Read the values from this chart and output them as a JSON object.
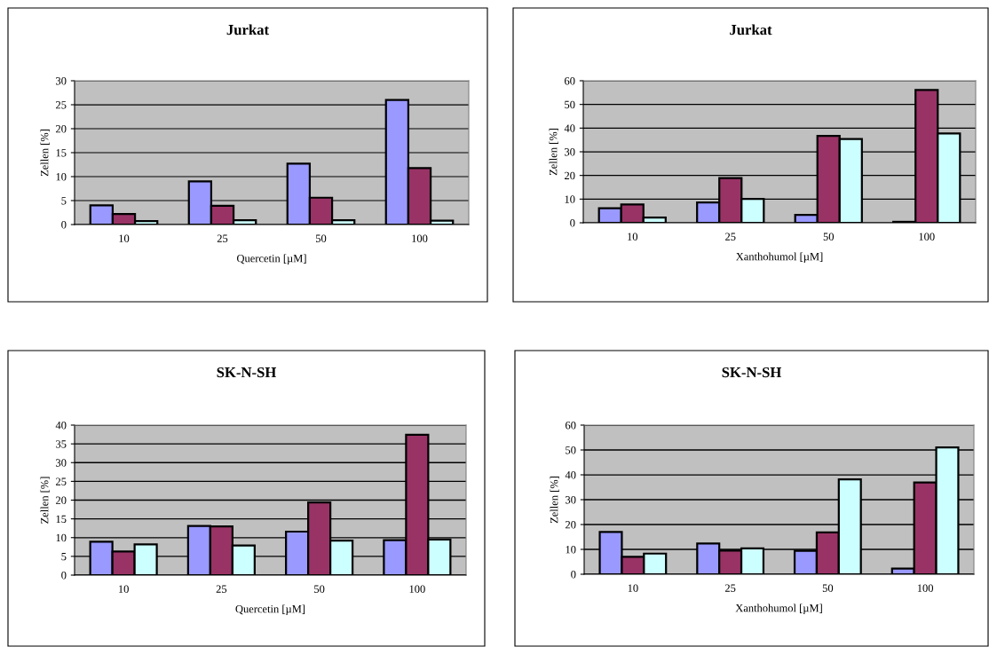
{
  "chart_data": [
    {
      "type": "bar",
      "title": "Jurkat",
      "xlabel": "Quercetin [µM]",
      "ylabel": "Zellen [%]",
      "categories": [
        "10",
        "25",
        "50",
        "100"
      ],
      "ylim": [
        0,
        30
      ],
      "yticks": [
        0,
        5,
        10,
        15,
        20,
        25,
        30
      ],
      "grid": "y",
      "series": [
        {
          "color": "#9999ff",
          "values": [
            4.0,
            9.0,
            12.7,
            26.0
          ]
        },
        {
          "color": "#993366",
          "values": [
            2.2,
            3.9,
            5.6,
            11.8
          ]
        },
        {
          "color": "#ccffff",
          "values": [
            0.7,
            0.9,
            0.9,
            0.8
          ]
        }
      ]
    },
    {
      "type": "bar",
      "title": "Jurkat",
      "xlabel": "Xanthohumol [µM]",
      "ylabel": "Zellen [%]",
      "categories": [
        "10",
        "25",
        "50",
        "100"
      ],
      "ylim": [
        0,
        60
      ],
      "yticks": [
        0,
        10,
        20,
        30,
        40,
        50,
        60
      ],
      "grid": "y",
      "series": [
        {
          "color": "#9999ff",
          "values": [
            6.1,
            8.6,
            3.3,
            0.4
          ]
        },
        {
          "color": "#993366",
          "values": [
            7.7,
            18.9,
            36.7,
            56.1
          ]
        },
        {
          "color": "#ccffff",
          "values": [
            2.2,
            10.1,
            35.4,
            37.7
          ]
        }
      ]
    },
    {
      "type": "bar",
      "title": "SK-N-SH",
      "xlabel": "Quercetin [µM]",
      "ylabel": "Zellen [%]",
      "categories": [
        "10",
        "25",
        "50",
        "100"
      ],
      "ylim": [
        0,
        40
      ],
      "yticks": [
        0,
        5,
        10,
        15,
        20,
        25,
        30,
        35,
        40
      ],
      "grid": "y",
      "series": [
        {
          "color": "#9999ff",
          "values": [
            8.9,
            13.1,
            11.6,
            9.3
          ]
        },
        {
          "color": "#993366",
          "values": [
            6.3,
            13.0,
            19.4,
            37.4
          ]
        },
        {
          "color": "#ccffff",
          "values": [
            8.2,
            7.9,
            9.2,
            9.5
          ]
        }
      ]
    },
    {
      "type": "bar",
      "title": "SK-N-SH",
      "xlabel": "Xanthohumol [µM]",
      "ylabel": "Zellen [%]",
      "categories": [
        "10",
        "25",
        "50",
        "100"
      ],
      "ylim": [
        0,
        60
      ],
      "yticks": [
        0,
        10,
        20,
        30,
        40,
        50,
        60
      ],
      "grid": "y",
      "series": [
        {
          "color": "#9999ff",
          "values": [
            17.0,
            12.4,
            9.4,
            2.3
          ]
        },
        {
          "color": "#993366",
          "values": [
            7.0,
            9.5,
            16.8,
            36.9
          ]
        },
        {
          "color": "#ccffff",
          "values": [
            8.3,
            10.4,
            38.2,
            51.0
          ]
        }
      ]
    }
  ]
}
